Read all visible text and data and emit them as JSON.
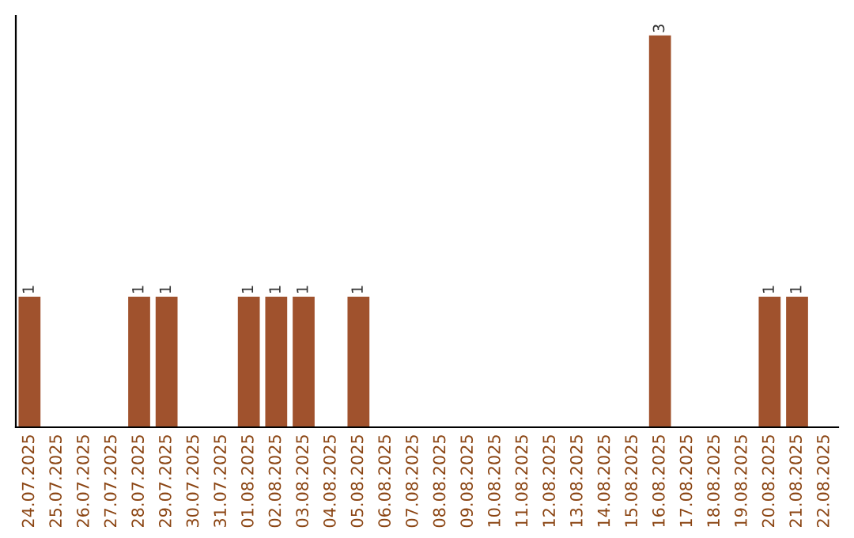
{
  "chart_data": {
    "type": "bar",
    "categories": [
      "24.07.2025",
      "25.07.2025",
      "26.07.2025",
      "27.07.2025",
      "28.07.2025",
      "29.07.2025",
      "30.07.2025",
      "31.07.2025",
      "01.08.2025",
      "02.08.2025",
      "03.08.2025",
      "04.08.2025",
      "05.08.2025",
      "06.08.2025",
      "07.08.2025",
      "08.08.2025",
      "09.08.2025",
      "10.08.2025",
      "11.08.2025",
      "12.08.2025",
      "13.08.2025",
      "14.08.2025",
      "15.08.2025",
      "16.08.2025",
      "17.08.2025",
      "18.08.2025",
      "19.08.2025",
      "20.08.2025",
      "21.08.2025",
      "22.08.2025"
    ],
    "values": [
      1,
      null,
      null,
      null,
      1,
      1,
      null,
      null,
      1,
      1,
      1,
      null,
      1,
      null,
      null,
      null,
      null,
      null,
      null,
      null,
      null,
      null,
      null,
      3,
      null,
      null,
      null,
      1,
      1,
      null
    ],
    "value_labels": [
      "1",
      null,
      null,
      null,
      "1",
      "1",
      null,
      null,
      "1",
      "1",
      "1",
      null,
      "1",
      null,
      null,
      null,
      null,
      null,
      null,
      null,
      null,
      null,
      null,
      "3",
      null,
      null,
      null,
      "1",
      "1",
      null
    ],
    "color": "#a0522d",
    "tick_labels": "x",
    "grid": false,
    "legend": false
  }
}
